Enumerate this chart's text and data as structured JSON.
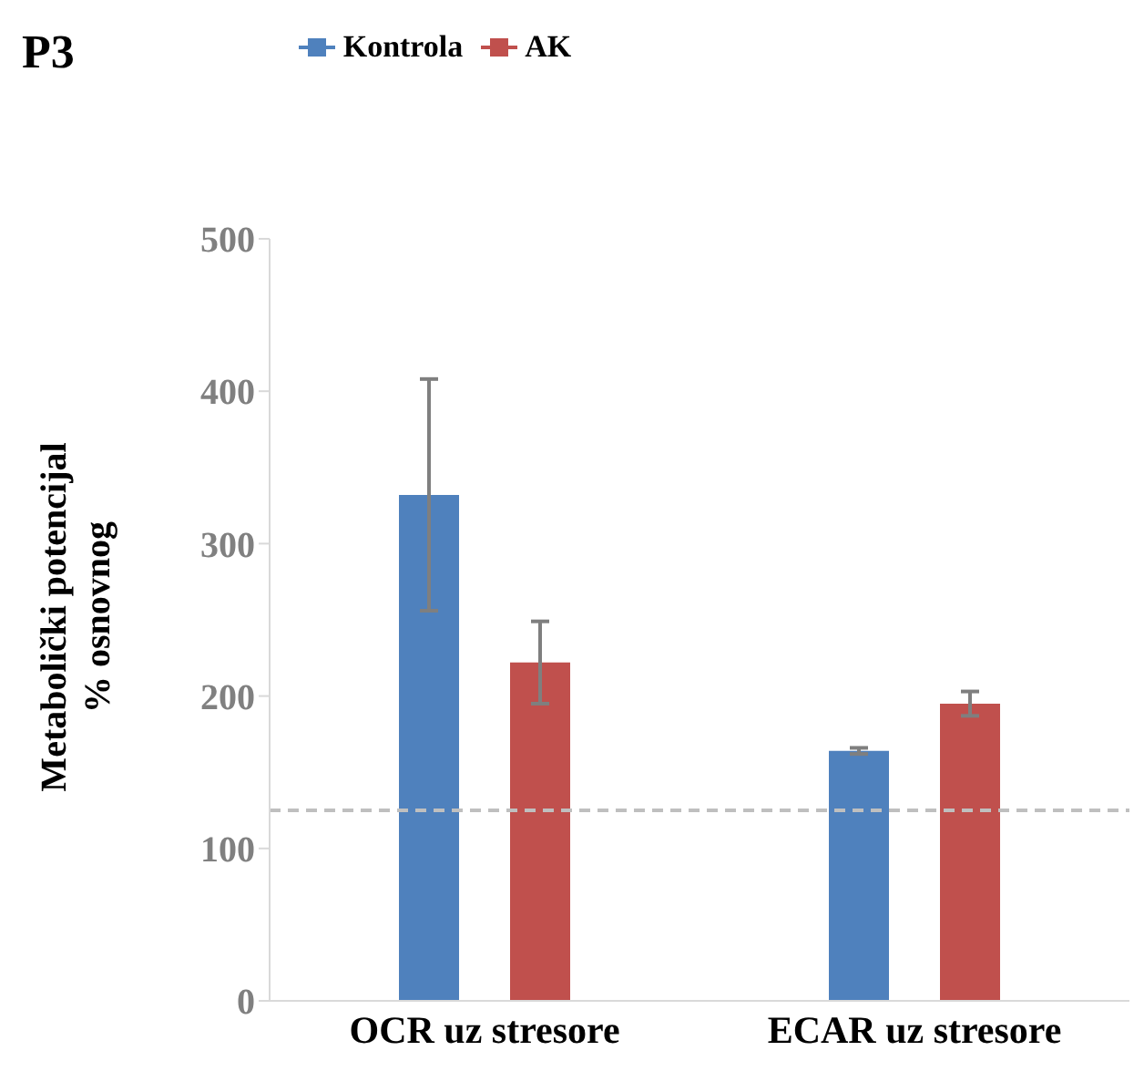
{
  "chart_data": {
    "type": "bar",
    "title": "P3",
    "ylabel": "Metabolički potencijal\n% osnovnog",
    "categories": [
      "OCR uz stresore",
      "ECAR uz stresore"
    ],
    "series": [
      {
        "name": "Kontrola",
        "color": "#4f81bd",
        "values": [
          332,
          164
        ],
        "errors": [
          76,
          2
        ]
      },
      {
        "name": "AK",
        "color": "#c0504d",
        "values": [
          222,
          195
        ],
        "errors": [
          27,
          8
        ]
      }
    ],
    "ylim": [
      0,
      500
    ],
    "yticks": [
      0,
      100,
      200,
      300,
      400,
      500
    ],
    "legend": "top",
    "ref_lines": [
      {
        "axis": "y",
        "value": 125,
        "color": "#bfbfbf",
        "line_style": "dashed"
      }
    ]
  }
}
